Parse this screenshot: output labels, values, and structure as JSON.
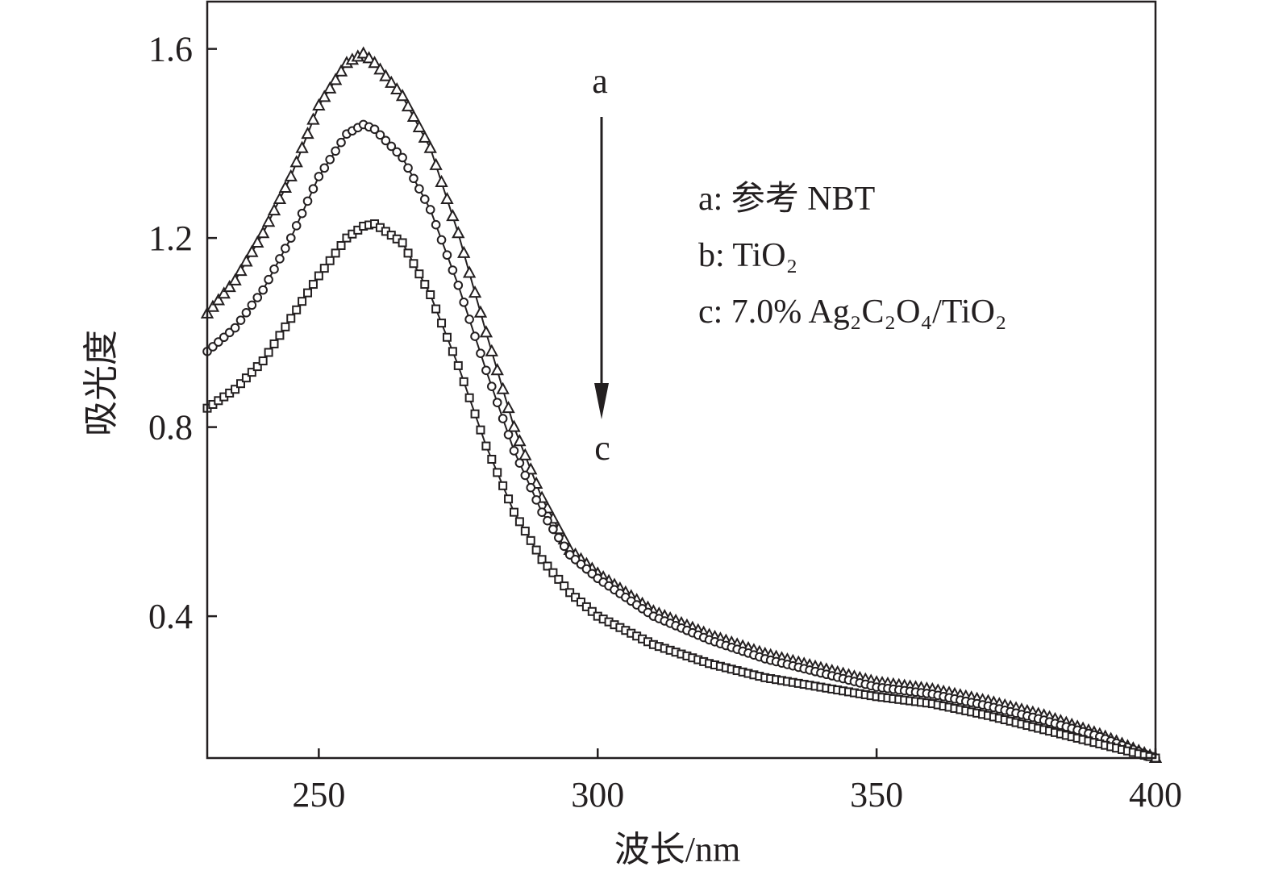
{
  "chart_data": {
    "type": "line",
    "title": "",
    "xlabel": "波长/nm",
    "ylabel": "吸光度",
    "xlim": [
      230,
      400
    ],
    "ylim": [
      0.1,
      1.7
    ],
    "xticks": [
      250,
      300,
      350,
      400
    ],
    "yticks": [
      0.4,
      0.8,
      1.2,
      1.6
    ],
    "xtick_labels": [
      "250",
      "300",
      "350",
      "400"
    ],
    "ytick_labels": [
      "0.4",
      "0.8",
      "1.2",
      "1.6"
    ],
    "grid": false,
    "legend_position": "top-right",
    "legend": [
      "a: 参考 NBT",
      "b: TiO₂",
      "c: 7.0% Ag₂C₂O₄/TiO₂"
    ],
    "annotations": {
      "arrow_start": "a",
      "arrow_end": "c"
    },
    "x": [
      230,
      235,
      240,
      245,
      250,
      255,
      258,
      260,
      265,
      270,
      275,
      280,
      285,
      290,
      295,
      300,
      305,
      310,
      320,
      330,
      340,
      350,
      360,
      370,
      380,
      390,
      400
    ],
    "series": [
      {
        "name": "a",
        "marker": "triangle",
        "values": [
          1.04,
          1.11,
          1.21,
          1.33,
          1.48,
          1.57,
          1.59,
          1.57,
          1.5,
          1.39,
          1.21,
          1.0,
          0.8,
          0.65,
          0.54,
          0.49,
          0.45,
          0.41,
          0.36,
          0.32,
          0.29,
          0.26,
          0.245,
          0.22,
          0.19,
          0.15,
          0.1
        ]
      },
      {
        "name": "b",
        "marker": "circle",
        "values": [
          0.96,
          1.01,
          1.09,
          1.2,
          1.33,
          1.42,
          1.44,
          1.43,
          1.37,
          1.26,
          1.1,
          0.92,
          0.75,
          0.62,
          0.53,
          0.48,
          0.44,
          0.4,
          0.35,
          0.31,
          0.28,
          0.25,
          0.235,
          0.21,
          0.18,
          0.145,
          0.1
        ]
      },
      {
        "name": "c",
        "marker": "square",
        "values": [
          0.84,
          0.88,
          0.94,
          1.03,
          1.12,
          1.2,
          1.225,
          1.23,
          1.19,
          1.08,
          0.93,
          0.76,
          0.62,
          0.52,
          0.45,
          0.4,
          0.37,
          0.34,
          0.3,
          0.27,
          0.25,
          0.23,
          0.215,
          0.19,
          0.16,
          0.13,
          0.1
        ]
      }
    ],
    "colors": {
      "ink": "#231f20"
    }
  }
}
